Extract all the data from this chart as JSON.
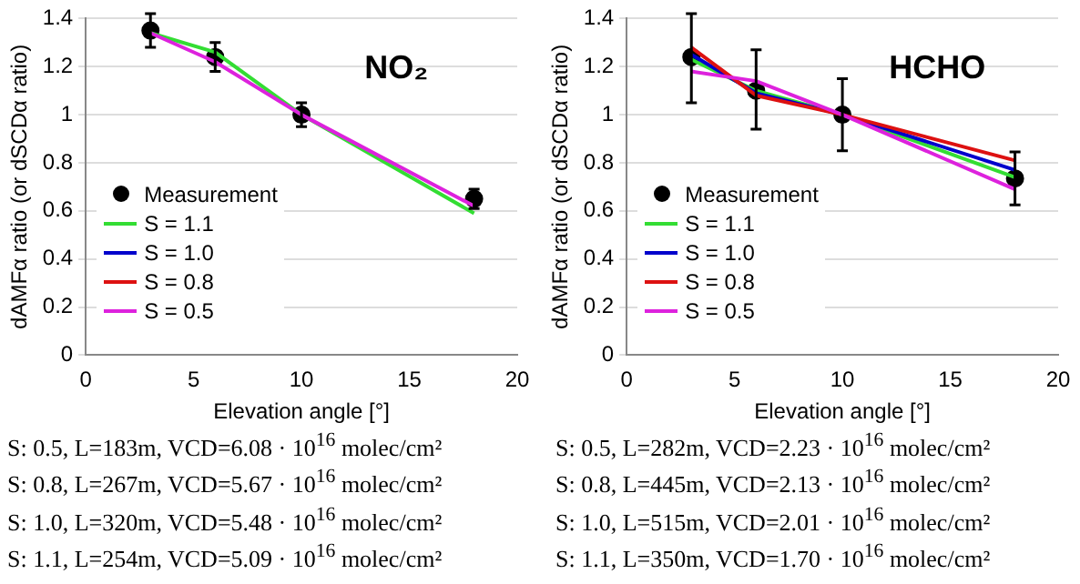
{
  "chart_data": [
    {
      "type": "line",
      "title": "NO₂",
      "xlabel": "Elevation angle [°]",
      "ylabel": "dAMFα ratio (or dSCDα ratio)",
      "x": [
        3,
        6,
        10,
        18
      ],
      "xlim": [
        0,
        20
      ],
      "xticks": [
        0,
        5,
        10,
        15,
        20
      ],
      "ylim": [
        0,
        1.4
      ],
      "yticks": [
        0,
        0.2,
        0.4,
        0.6,
        0.8,
        1,
        1.2,
        1.4
      ],
      "grid": "y",
      "legend": "bottom left",
      "series": [
        {
          "name": "Measurement",
          "type": "scatter",
          "marker": "circle",
          "color": "#000000",
          "values": [
            1.35,
            1.24,
            1.0,
            0.65
          ],
          "errors": [
            0.07,
            0.06,
            0.05,
            0.04
          ]
        },
        {
          "name": "S = 1.1",
          "type": "line",
          "color": "#33dd33",
          "values": [
            1.34,
            1.26,
            1.0,
            0.59
          ]
        },
        {
          "name": "S = 1.0",
          "type": "line",
          "color": "#0000cc",
          "values": [
            null,
            null,
            null,
            null
          ]
        },
        {
          "name": "S = 0.8",
          "type": "line",
          "color": "#dd1111",
          "values": [
            null,
            null,
            null,
            null
          ]
        },
        {
          "name": "S = 0.5",
          "type": "line",
          "color": "#dd22dd",
          "values": [
            1.34,
            1.22,
            1.0,
            0.62
          ]
        }
      ],
      "annotations": [
        "S: 0.5,  L=183m, VCD=6.08 · 10$^{16}$ molec/cm²",
        "S: 0.8,  L=267m, VCD=5.67 · 10$^{16}$ molec/cm²",
        "S: 1.0,  L=320m, VCD=5.48 · 10$^{16}$ molec/cm²",
        "S: 1.1,  L=254m, VCD=5.09 · 10$^{16}$ molec/cm²"
      ]
    },
    {
      "type": "line",
      "title": "HCHO",
      "xlabel": "Elevation angle [°]",
      "ylabel": "dAMFα ratio (or dSCDα ratio)",
      "x": [
        3,
        6,
        10,
        18
      ],
      "xlim": [
        0,
        20
      ],
      "xticks": [
        0,
        5,
        10,
        15,
        20
      ],
      "ylim": [
        0,
        1.4
      ],
      "yticks": [
        0,
        0.2,
        0.4,
        0.6,
        0.8,
        1,
        1.2,
        1.4
      ],
      "grid": "y",
      "legend": "bottom left",
      "series": [
        {
          "name": "Measurement",
          "type": "scatter",
          "marker": "circle",
          "color": "#000000",
          "values": [
            1.24,
            1.1,
            1.0,
            0.735
          ],
          "errors": [
            [
              1.05,
              1.42
            ],
            [
              0.94,
              1.27
            ],
            [
              0.85,
              1.15
            ],
            [
              0.625,
              0.845
            ]
          ]
        },
        {
          "name": "S = 1.1",
          "type": "line",
          "color": "#33dd33",
          "values": [
            1.23,
            1.1,
            1.0,
            0.74
          ]
        },
        {
          "name": "S = 1.0",
          "type": "line",
          "color": "#0000cc",
          "values": [
            1.25,
            1.09,
            1.0,
            0.77
          ]
        },
        {
          "name": "S = 0.8",
          "type": "line",
          "color": "#dd1111",
          "values": [
            1.28,
            1.08,
            1.0,
            0.81
          ]
        },
        {
          "name": "S = 0.5",
          "type": "line",
          "color": "#dd22dd",
          "values": [
            1.18,
            1.14,
            1.0,
            0.69
          ]
        }
      ],
      "annotations": [
        "S: 0.5,  L=282m,  VCD=2.23 · 10$^{16}$ molec/cm²",
        "S: 0.8,  L=445m,  VCD=2.13 · 10$^{16}$ molec/cm²",
        "S: 1.0,  L=515m,  VCD=2.01 · 10$^{16}$ molec/cm²",
        "S: 1.1,  L=350m,  VCD=1.70 · 10$^{16}$ molec/cm²"
      ]
    }
  ]
}
